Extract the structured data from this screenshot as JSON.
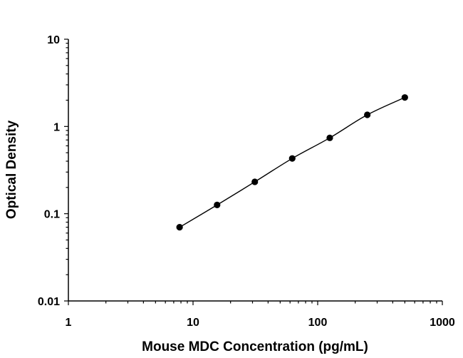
{
  "chart_data": {
    "type": "scatter",
    "title": "",
    "xlabel": "Mouse MDC Concentration (pg/mL)",
    "ylabel": "Optical Density",
    "xscale": "log",
    "yscale": "log",
    "xlim": [
      1,
      1000
    ],
    "ylim": [
      0.01,
      10
    ],
    "x_tick_labels": [
      "1",
      "10",
      "100",
      "1000"
    ],
    "y_tick_labels": [
      "0.01",
      "0.1",
      "1",
      "10"
    ],
    "grid": false,
    "legend": "none",
    "marker_color": "#000000",
    "line_color": "#000000",
    "fit": "smooth curve through points",
    "series": [
      {
        "x": [
          7.8,
          15.6,
          31.3,
          62.5,
          125,
          250,
          500
        ],
        "y": [
          0.07,
          0.126,
          0.232,
          0.43,
          0.74,
          1.36,
          2.15
        ]
      }
    ]
  }
}
